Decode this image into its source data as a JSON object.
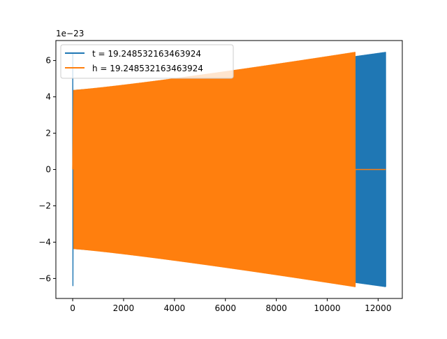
{
  "chart_data": {
    "type": "line",
    "title": "",
    "xlabel": "",
    "ylabel": "",
    "y_offset_text": "1e−23",
    "xlim": [
      -660,
      12950
    ],
    "ylim": [
      -7.1,
      7.1
    ],
    "xticks": [
      0,
      2000,
      4000,
      6000,
      8000,
      10000,
      12000
    ],
    "xtick_labels": [
      "0",
      "2000",
      "4000",
      "6000",
      "8000",
      "10000",
      "12000"
    ],
    "yticks": [
      -6,
      -4,
      -2,
      0,
      2,
      4,
      6
    ],
    "ytick_labels": [
      "−6",
      "−4",
      "−2",
      "0",
      "2",
      "4",
      "6"
    ],
    "grid": false,
    "legend_position": "upper left",
    "series": [
      {
        "name": "t = 19.248532163463924",
        "color": "#1f77b4",
        "description_shape": "oscillation with growing amplitude",
        "x_start": 0,
        "x_end": 12300,
        "amplitude_start": 4.35,
        "amplitude_end": 6.45,
        "initial_spike": 6.4
      },
      {
        "name": "h = 19.248532163463924",
        "color": "#ff7f0e",
        "description_shape": "oscillation with growing amplitude, then flat zero",
        "x_start": 0,
        "x_end": 11100,
        "amplitude_start": 4.35,
        "amplitude_end": 6.45,
        "zero_after": 11100,
        "zero_until": 12300
      }
    ]
  }
}
